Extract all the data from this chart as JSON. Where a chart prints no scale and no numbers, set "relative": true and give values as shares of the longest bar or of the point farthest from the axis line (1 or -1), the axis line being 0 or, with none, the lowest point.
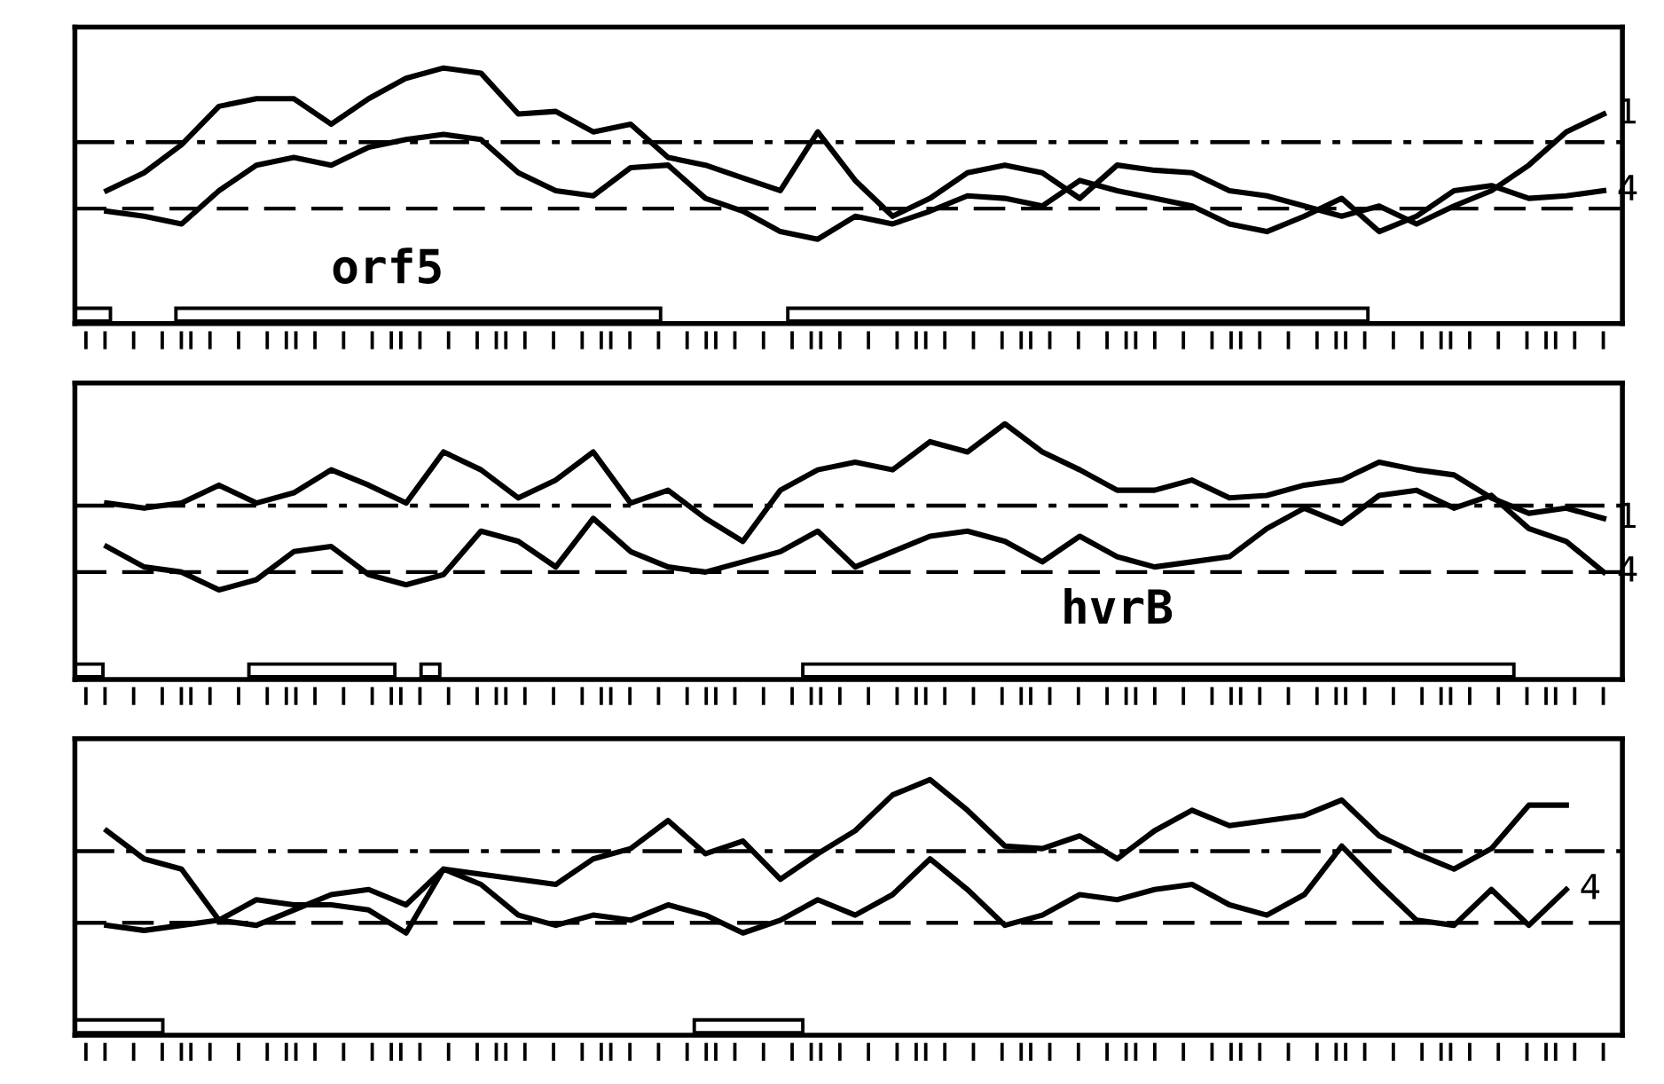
{
  "chart_data": [
    {
      "type": "line",
      "relative": true,
      "annotations": [
        "orf5"
      ],
      "categories": [
        null,
        null,
        null,
        null,
        null,
        null,
        null,
        null,
        null,
        null,
        null,
        null,
        null,
        null,
        null,
        null,
        null,
        null,
        null,
        null,
        null,
        null,
        null,
        null,
        null,
        null,
        null,
        null,
        null,
        null,
        null,
        null,
        null,
        null,
        null,
        null,
        null,
        null,
        null,
        null,
        null
      ],
      "series": [
        {
          "name": "1",
          "color": "#000000",
          "values": [
            0.52,
            0.59,
            0.7,
            0.85,
            0.88,
            0.88,
            0.78,
            0.88,
            0.96,
            1,
            0.98,
            0.82,
            0.83,
            0.75,
            0.78,
            0.65,
            0.62,
            0.57,
            0.52,
            0.75,
            0.56,
            0.42,
            0.49,
            0.59,
            0.62,
            0.59,
            0.49,
            0.62,
            0.6,
            0.59,
            0.52,
            0.5,
            0.46,
            0.42,
            0.46,
            0.39,
            0.46,
            0.52,
            0.62,
            0.75,
            0.82
          ]
        },
        {
          "name": "4",
          "color": "#000000",
          "values": [
            0.44,
            0.42,
            0.39,
            0.52,
            0.62,
            0.65,
            0.62,
            0.69,
            0.72,
            0.74,
            0.72,
            0.59,
            0.52,
            0.5,
            0.61,
            0.62,
            0.49,
            0.44,
            0.36,
            0.33,
            0.42,
            0.39,
            0.44,
            0.5,
            0.49,
            0.46,
            0.56,
            0.52,
            0.49,
            0.46,
            0.39,
            0.36,
            0.42,
            0.49,
            0.36,
            0.42,
            0.52,
            0.54,
            0.49,
            0.5,
            0.52
          ]
        }
      ],
      "ref_lines": [
        {
          "axis": "y",
          "value": 0.71,
          "line_style": "dashdot",
          "color": "#000000"
        },
        {
          "axis": "y",
          "value": 0.45,
          "line_style": "dashed",
          "color": "#000000"
        }
      ]
    },
    {
      "type": "line",
      "relative": true,
      "annotations": [
        "hvrB"
      ],
      "categories": [
        null,
        null,
        null,
        null,
        null,
        null,
        null,
        null,
        null,
        null,
        null,
        null,
        null,
        null,
        null,
        null,
        null,
        null,
        null,
        null,
        null,
        null,
        null,
        null,
        null,
        null,
        null,
        null,
        null,
        null,
        null,
        null,
        null,
        null,
        null,
        null,
        null,
        null,
        null,
        null,
        null
      ],
      "series": [
        {
          "name": "1",
          "color": "#000000",
          "values": [
            0.69,
            0.67,
            0.69,
            0.76,
            0.69,
            0.73,
            0.82,
            0.76,
            0.69,
            0.89,
            0.82,
            0.71,
            0.78,
            0.89,
            0.69,
            0.74,
            0.63,
            0.54,
            0.74,
            0.82,
            0.85,
            0.82,
            0.93,
            0.89,
            1,
            0.89,
            0.82,
            0.74,
            0.74,
            0.78,
            0.71,
            0.72,
            0.76,
            0.78,
            0.85,
            0.82,
            0.8,
            0.71,
            0.65,
            0.67,
            0.63
          ]
        },
        {
          "name": "4",
          "color": "#000000",
          "values": [
            0.52,
            0.44,
            0.42,
            0.35,
            0.39,
            0.5,
            0.52,
            0.41,
            0.37,
            0.41,
            0.58,
            0.54,
            0.44,
            0.63,
            0.5,
            0.44,
            0.42,
            0.46,
            0.5,
            0.58,
            0.44,
            0.5,
            0.56,
            0.58,
            0.54,
            0.46,
            0.56,
            0.48,
            0.44,
            0.46,
            0.48,
            0.59,
            0.67,
            0.61,
            0.72,
            0.74,
            0.67,
            0.72,
            0.59,
            0.54,
            0.42
          ]
        }
      ],
      "ref_lines": [
        {
          "axis": "y",
          "value": 0.68,
          "line_style": "dashdot",
          "color": "#000000"
        },
        {
          "axis": "y",
          "value": 0.42,
          "line_style": "dashed",
          "color": "#000000"
        }
      ]
    },
    {
      "type": "line",
      "relative": true,
      "categories": [
        null,
        null,
        null,
        null,
        null,
        null,
        null,
        null,
        null,
        null,
        null,
        null,
        null,
        null,
        null,
        null,
        null,
        null,
        null,
        null,
        null,
        null,
        null,
        null,
        null,
        null,
        null,
        null,
        null,
        null,
        null,
        null,
        null,
        null,
        null,
        null,
        null,
        null,
        null,
        null,
        null
      ],
      "series": [
        {
          "color": "#000000",
          "values": [
            0.8,
            0.69,
            0.65,
            0.45,
            0.53,
            0.51,
            0.51,
            0.49,
            0.4,
            0.65,
            0.63,
            0.61,
            0.59,
            0.69,
            0.73,
            0.84,
            0.71,
            0.76,
            0.61,
            0.71,
            0.8,
            0.94,
            1,
            0.88,
            0.74,
            0.73,
            0.78,
            0.69,
            0.8,
            0.88,
            0.82,
            0.84,
            0.86,
            0.92,
            0.78,
            0.71,
            0.65,
            0.73,
            0.9,
            0.9,
            null
          ]
        },
        {
          "name": "4",
          "color": "#000000",
          "values": [
            0.43,
            0.41,
            0.43,
            0.45,
            0.43,
            0.49,
            0.55,
            0.57,
            0.51,
            0.65,
            0.59,
            0.47,
            0.43,
            0.47,
            0.45,
            0.51,
            0.47,
            0.4,
            0.45,
            0.53,
            0.47,
            0.55,
            0.69,
            0.57,
            0.43,
            0.47,
            0.55,
            0.53,
            0.57,
            0.59,
            0.51,
            0.47,
            0.55,
            0.74,
            0.59,
            0.45,
            0.43,
            0.57,
            0.43,
            0.57,
            null
          ]
        }
      ],
      "ref_lines": [
        {
          "axis": "y",
          "value": 0.72,
          "line_style": "dashdot",
          "color": "#000000"
        },
        {
          "axis": "y",
          "value": 0.44,
          "line_style": "dashed",
          "color": "#000000"
        }
      ]
    }
  ]
}
